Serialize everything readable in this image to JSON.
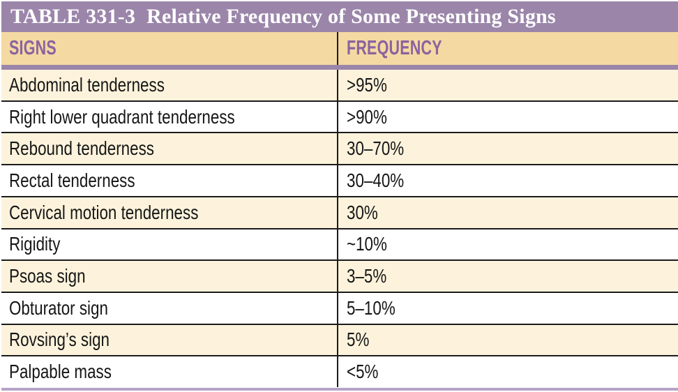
{
  "table": {
    "title_label": "TABLE 331-3",
    "title_text": "Relative Frequency of Some Presenting Signs",
    "columns": {
      "signs": "SIGNS",
      "frequency": "FREQUENCY"
    },
    "rows": [
      {
        "sign": "Abdominal tenderness",
        "frequency": ">95%"
      },
      {
        "sign": "Right lower quadrant tenderness",
        "frequency": ">90%"
      },
      {
        "sign": "Rebound tenderness",
        "frequency": "30–70%"
      },
      {
        "sign": "Rectal tenderness",
        "frequency": "30–40%"
      },
      {
        "sign": "Cervical motion tenderness",
        "frequency": "30%"
      },
      {
        "sign": "Rigidity",
        "frequency": "~10%"
      },
      {
        "sign": "Psoas sign",
        "frequency": "3–5%"
      },
      {
        "sign": "Obturator sign",
        "frequency": "5–10%"
      },
      {
        "sign": "Rovsing’s sign",
        "frequency": "5%"
      },
      {
        "sign": "Palpable mass",
        "frequency": "<5%"
      }
    ],
    "colors": {
      "title_bar": "#9B86AA",
      "header_bg": "#F5D9A2",
      "header_text": "#8A63A0",
      "row_alt_bg": "#FDF3DC",
      "bottom_rule": "#B5A3C6"
    }
  }
}
